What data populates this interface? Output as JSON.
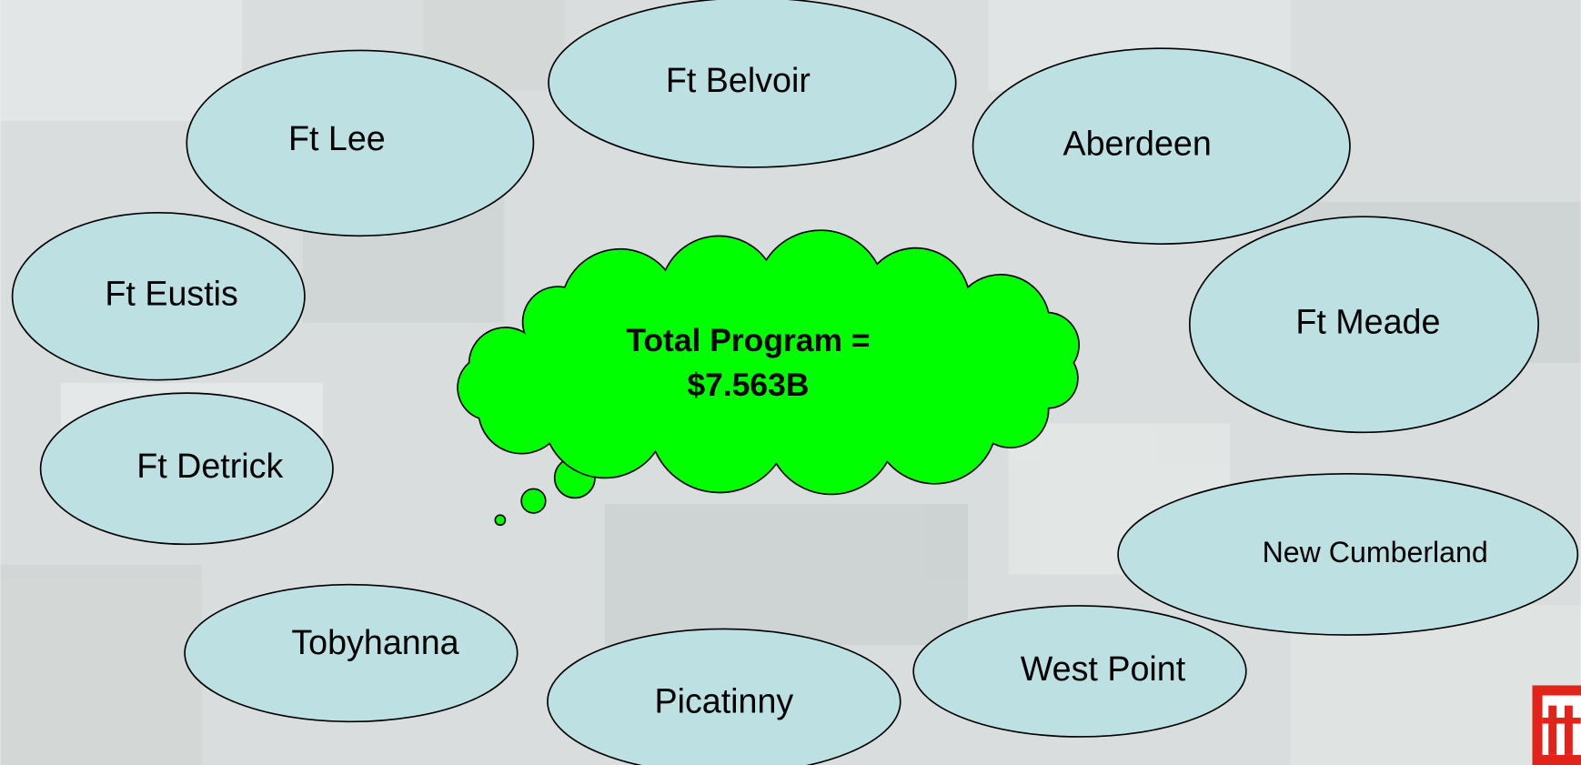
{
  "nodes": [
    {
      "label": "Ft Belvoir"
    },
    {
      "label": "Ft Lee"
    },
    {
      "label": "Aberdeen"
    },
    {
      "label": "Ft Eustis"
    },
    {
      "label": "Ft Meade"
    },
    {
      "label": "Ft Detrick"
    },
    {
      "label": "New Cumberland"
    },
    {
      "label": "Tobyhanna"
    },
    {
      "label": "Picatinny"
    },
    {
      "label": "West Point"
    }
  ],
  "center": {
    "lines": [
      "Total Program =",
      "$7.563B"
    ]
  }
}
